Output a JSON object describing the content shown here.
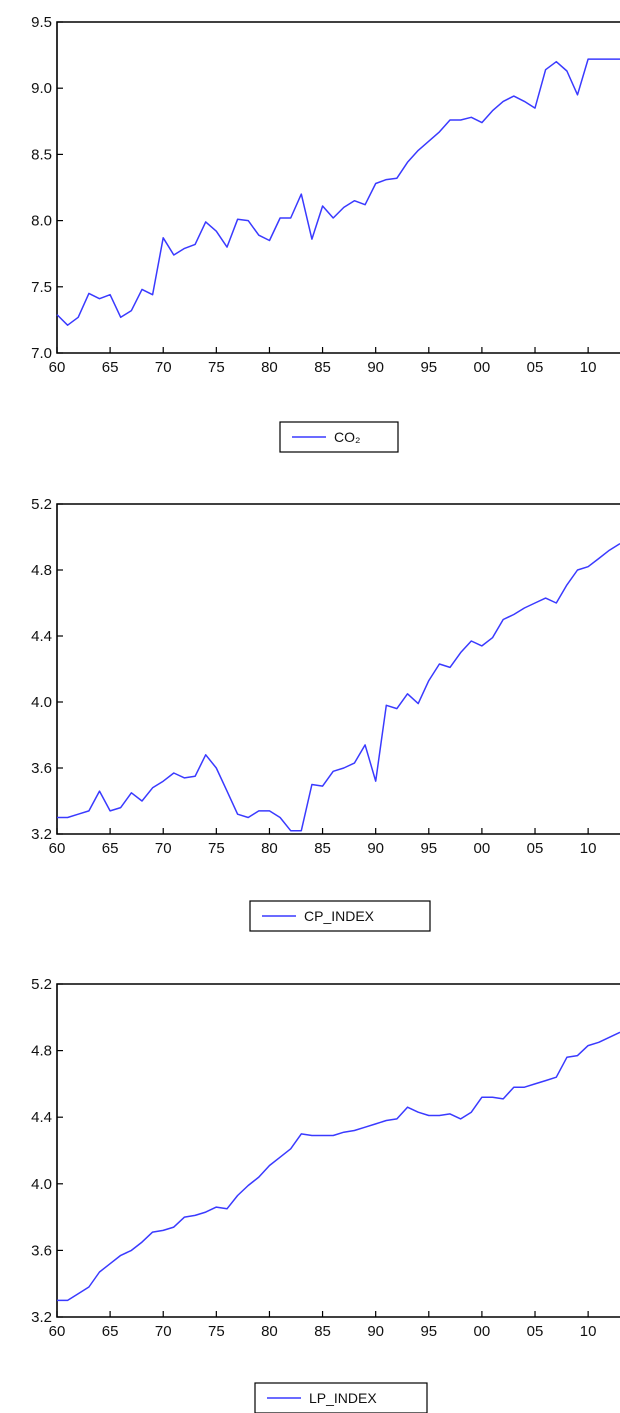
{
  "chart_data": [
    {
      "type": "line",
      "x": [
        60,
        61,
        62,
        63,
        64,
        65,
        66,
        67,
        68,
        69,
        70,
        71,
        72,
        73,
        74,
        75,
        76,
        77,
        78,
        79,
        80,
        81,
        82,
        83,
        84,
        85,
        86,
        87,
        88,
        89,
        90,
        91,
        92,
        93,
        94,
        95,
        96,
        97,
        98,
        99,
        100,
        101,
        102,
        103,
        104,
        105,
        106,
        107,
        108,
        109,
        110,
        111,
        112,
        113
      ],
      "series": [
        {
          "name": "CO₂",
          "color": "#3a3aff",
          "values": [
            7.29,
            7.21,
            7.27,
            7.45,
            7.41,
            7.44,
            7.27,
            7.32,
            7.48,
            7.44,
            7.87,
            7.74,
            7.79,
            7.82,
            7.99,
            7.92,
            7.8,
            8.01,
            8.0,
            7.89,
            7.85,
            8.02,
            8.02,
            8.2,
            7.86,
            8.11,
            8.02,
            8.1,
            8.15,
            8.12,
            8.28,
            8.31,
            8.32,
            8.44,
            8.53,
            8.6,
            8.67,
            8.76,
            8.76,
            8.78,
            8.74,
            8.83,
            8.9,
            8.94,
            8.9,
            8.85,
            9.14,
            9.2,
            9.13,
            8.95,
            9.22,
            9.22,
            9.22,
            9.22
          ]
        }
      ],
      "ylim": [
        7.0,
        9.5
      ],
      "y_ticks": [
        "7.0",
        "7.5",
        "8.0",
        "8.5",
        "9.0",
        "9.5"
      ],
      "x_ticks": [
        "60",
        "65",
        "70",
        "75",
        "80",
        "85",
        "90",
        "95",
        "00",
        "05",
        "10"
      ],
      "grid": false,
      "legend_position": "bottom"
    },
    {
      "type": "line",
      "x": [
        60,
        61,
        62,
        63,
        64,
        65,
        66,
        67,
        68,
        69,
        70,
        71,
        72,
        73,
        74,
        75,
        76,
        77,
        78,
        79,
        80,
        81,
        82,
        83,
        84,
        85,
        86,
        87,
        88,
        89,
        90,
        91,
        92,
        93,
        94,
        95,
        96,
        97,
        98,
        99,
        100,
        101,
        102,
        103,
        104,
        105,
        106,
        107,
        108,
        109,
        110,
        111,
        112,
        113
      ],
      "series": [
        {
          "name": "CP_INDEX",
          "color": "#3a3aff",
          "values": [
            3.3,
            3.3,
            3.32,
            3.34,
            3.46,
            3.34,
            3.36,
            3.45,
            3.4,
            3.48,
            3.52,
            3.57,
            3.54,
            3.55,
            3.68,
            3.6,
            3.46,
            3.32,
            3.3,
            3.34,
            3.34,
            3.3,
            3.22,
            3.22,
            3.5,
            3.49,
            3.58,
            3.6,
            3.63,
            3.74,
            3.52,
            3.98,
            3.96,
            4.05,
            3.99,
            4.13,
            4.23,
            4.21,
            4.3,
            4.37,
            4.34,
            4.39,
            4.5,
            4.53,
            4.57,
            4.6,
            4.63,
            4.6,
            4.71,
            4.8,
            4.82,
            4.87,
            4.92,
            4.96
          ]
        }
      ],
      "ylim": [
        3.2,
        5.2
      ],
      "y_ticks": [
        "3.2",
        "3.6",
        "4.0",
        "4.4",
        "4.8",
        "5.2"
      ],
      "x_ticks": [
        "60",
        "65",
        "70",
        "75",
        "80",
        "85",
        "90",
        "95",
        "00",
        "05",
        "10"
      ],
      "grid": false,
      "legend_position": "bottom"
    },
    {
      "type": "line",
      "x": [
        60,
        61,
        62,
        63,
        64,
        65,
        66,
        67,
        68,
        69,
        70,
        71,
        72,
        73,
        74,
        75,
        76,
        77,
        78,
        79,
        80,
        81,
        82,
        83,
        84,
        85,
        86,
        87,
        88,
        89,
        90,
        91,
        92,
        93,
        94,
        95,
        96,
        97,
        98,
        99,
        100,
        101,
        102,
        103,
        104,
        105,
        106,
        107,
        108,
        109,
        110,
        111,
        112,
        113
      ],
      "series": [
        {
          "name": "LP_INDEX",
          "color": "#3a3aff",
          "values": [
            3.3,
            3.3,
            3.34,
            3.38,
            3.47,
            3.52,
            3.57,
            3.6,
            3.65,
            3.71,
            3.72,
            3.74,
            3.8,
            3.81,
            3.83,
            3.86,
            3.85,
            3.93,
            3.99,
            4.04,
            4.11,
            4.16,
            4.21,
            4.3,
            4.29,
            4.29,
            4.29,
            4.31,
            4.32,
            4.34,
            4.36,
            4.38,
            4.39,
            4.46,
            4.43,
            4.41,
            4.41,
            4.42,
            4.39,
            4.43,
            4.52,
            4.52,
            4.51,
            4.58,
            4.58,
            4.6,
            4.62,
            4.64,
            4.76,
            4.77,
            4.83,
            4.85,
            4.88,
            4.91
          ]
        }
      ],
      "ylim": [
        3.2,
        5.2
      ],
      "y_ticks": [
        "3.2",
        "3.6",
        "4.0",
        "4.4",
        "4.8",
        "5.2"
      ],
      "x_ticks": [
        "60",
        "65",
        "70",
        "75",
        "80",
        "85",
        "90",
        "95",
        "00",
        "05",
        "10"
      ],
      "grid": false,
      "legend_position": "bottom"
    }
  ]
}
